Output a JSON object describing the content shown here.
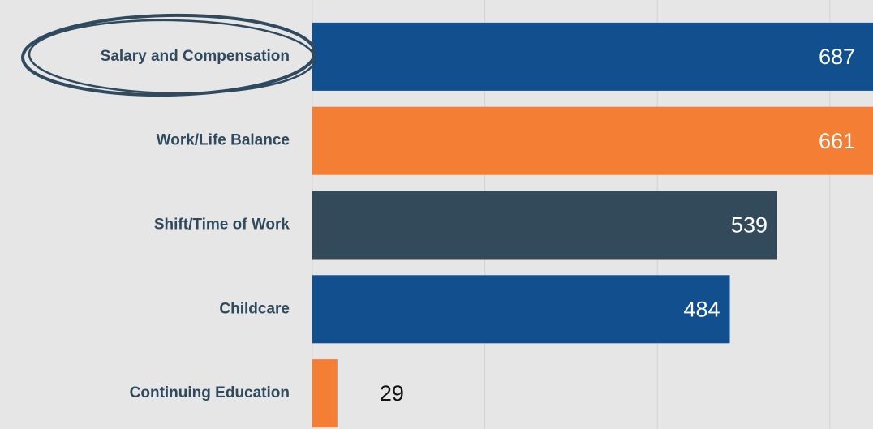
{
  "chart_data": {
    "type": "barh",
    "categories": [
      "Salary and Compensation",
      "Work/Life Balance",
      "Shift/Time of Work",
      "Childcare",
      "Continuing Education"
    ],
    "values": [
      687,
      661,
      539,
      484,
      29
    ],
    "colors": [
      "#124f8f",
      "#f47f34",
      "#334a5a",
      "#124f8f",
      "#f47f34"
    ],
    "xlim": [
      0,
      650
    ],
    "xticks": [
      0,
      200,
      400,
      600
    ],
    "grid": true
  }
}
